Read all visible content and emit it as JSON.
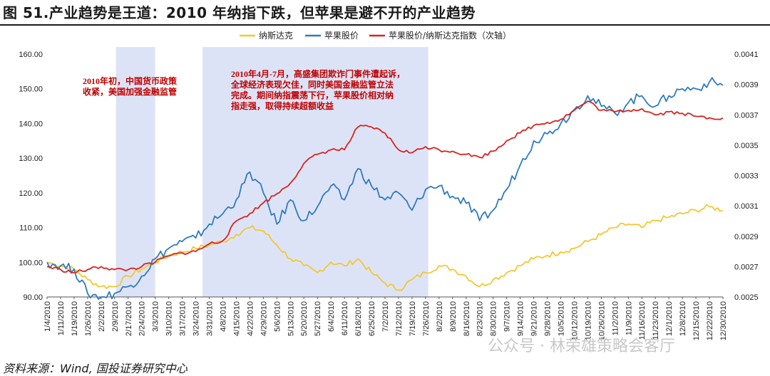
{
  "header": {
    "title": "图 51.产业趋势是王道：2010 年纳指下跌，但苹果是避不开的产业趋势"
  },
  "footer": {
    "source": "资料来源：Wind, 国投证券研究中心",
    "watermark": "公众号 · 林荣雄策略会客厅"
  },
  "colors": {
    "nasdaq": "#f2c832",
    "apple": "#2f7bbf",
    "ratio": "#d9231f",
    "shade": "#dde3f6",
    "annotation": "#c00000"
  },
  "chart_data": {
    "type": "line",
    "legend": [
      "纳斯达克",
      "苹果股价",
      "苹果股价/纳斯达克指数（次轴）"
    ],
    "legend_position": "top-center",
    "x_tick_labels": [
      "1/4/2010",
      "1/11/2010",
      "1/19/2010",
      "1/26/2010",
      "2/2/2010",
      "2/9/2010",
      "2/17/2010",
      "2/24/2010",
      "3/3/2010",
      "3/10/2010",
      "3/17/2010",
      "3/24/2010",
      "3/31/2010",
      "4/8/2010",
      "4/15/2010",
      "4/22/2010",
      "4/29/2010",
      "5/6/2010",
      "5/13/2010",
      "5/20/2010",
      "5/27/2010",
      "6/4/2010",
      "6/11/2010",
      "6/18/2010",
      "6/25/2010",
      "7/2/2010",
      "7/12/2010",
      "7/19/2010",
      "7/26/2010",
      "8/2/2010",
      "8/9/2010",
      "8/16/2010",
      "8/23/2010",
      "8/30/2010",
      "9/7/2010",
      "9/14/2010",
      "9/21/2010",
      "9/28/2010",
      "10/5/2010",
      "10/12/2010",
      "10/19/2010",
      "10/26/2010",
      "11/2/2010",
      "11/9/2010",
      "11/16/2010",
      "11/23/2010",
      "12/1/2010",
      "12/8/2010",
      "12/15/2010",
      "12/22/2010",
      "12/30/2010"
    ],
    "y_left": {
      "min": 90,
      "max": 160,
      "ticks": [
        "90.00",
        "100.00",
        "110.00",
        "120.00",
        "130.00",
        "140.00",
        "150.00",
        "160.00"
      ]
    },
    "y_right": {
      "min": 0.0025,
      "max": 0.0041,
      "ticks": [
        "0.0025",
        "0.0027",
        "0.0029",
        "0.0031",
        "0.0033",
        "0.0035",
        "0.0037",
        "0.0039",
        "0.0041"
      ]
    },
    "grid": false,
    "shaded_periods": [
      {
        "from": 5.1,
        "to": 8.0
      },
      {
        "from": 11.5,
        "to": 28.2
      }
    ],
    "annotations": [
      {
        "lines": [
          "2010年初，中国货币政策",
          "收紧，美国加强金融监管"
        ]
      },
      {
        "lines": [
          "2010年4月-7月，高盛集团欺诈门事件遭起诉，",
          "全球经济表现欠佳，同时美国金融监管立法",
          "完成。期间纳指震荡下行，苹果股价相对纳",
          "指走强，取得持续超额收益"
        ]
      }
    ],
    "series": [
      {
        "name": "纳斯达克",
        "axis": "left",
        "points": [
          [
            0,
            100
          ],
          [
            1,
            99
          ],
          [
            2,
            98
          ],
          [
            3,
            95
          ],
          [
            4,
            93
          ],
          [
            5,
            93
          ],
          [
            6,
            96
          ],
          [
            7,
            98
          ],
          [
            8,
            100
          ],
          [
            9,
            102
          ],
          [
            10,
            103
          ],
          [
            11,
            104
          ],
          [
            12,
            105
          ],
          [
            13,
            106
          ],
          [
            14,
            108
          ],
          [
            15,
            110
          ],
          [
            16,
            109
          ],
          [
            17,
            105
          ],
          [
            18,
            101
          ],
          [
            19,
            99
          ],
          [
            20,
            97
          ],
          [
            21,
            100
          ],
          [
            22,
            99
          ],
          [
            23,
            101
          ],
          [
            24,
            97
          ],
          [
            25,
            94
          ],
          [
            26,
            92
          ],
          [
            27,
            95
          ],
          [
            28,
            97
          ],
          [
            29,
            99
          ],
          [
            30,
            98
          ],
          [
            31,
            96
          ],
          [
            32,
            93
          ],
          [
            33,
            95
          ],
          [
            34,
            97
          ],
          [
            35,
            99
          ],
          [
            36,
            101
          ],
          [
            37,
            102
          ],
          [
            38,
            103
          ],
          [
            39,
            104
          ],
          [
            40,
            106
          ],
          [
            41,
            108
          ],
          [
            42,
            110
          ],
          [
            43,
            111
          ],
          [
            44,
            110
          ],
          [
            45,
            112
          ],
          [
            46,
            113
          ],
          [
            47,
            114
          ],
          [
            48,
            115
          ],
          [
            49,
            116
          ],
          [
            50,
            115
          ]
        ]
      },
      {
        "name": "苹果股价",
        "axis": "left",
        "points": [
          [
            0,
            100
          ],
          [
            1,
            99
          ],
          [
            2,
            98
          ],
          [
            3,
            91
          ],
          [
            4,
            90
          ],
          [
            5,
            91
          ],
          [
            6,
            93
          ],
          [
            7,
            96
          ],
          [
            8,
            101
          ],
          [
            9,
            104
          ],
          [
            10,
            106
          ],
          [
            11,
            107
          ],
          [
            12,
            111
          ],
          [
            13,
            114
          ],
          [
            14,
            118
          ],
          [
            15,
            126
          ],
          [
            16,
            120
          ],
          [
            17,
            111
          ],
          [
            18,
            118
          ],
          [
            19,
            112
          ],
          [
            20,
            116
          ],
          [
            21,
            122
          ],
          [
            22,
            118
          ],
          [
            23,
            127
          ],
          [
            24,
            122
          ],
          [
            25,
            118
          ],
          [
            26,
            120
          ],
          [
            27,
            115
          ],
          [
            28,
            121
          ],
          [
            29,
            122
          ],
          [
            30,
            119
          ],
          [
            31,
            117
          ],
          [
            32,
            112
          ],
          [
            33,
            115
          ],
          [
            34,
            121
          ],
          [
            35,
            128
          ],
          [
            36,
            135
          ],
          [
            37,
            137
          ],
          [
            38,
            140
          ],
          [
            39,
            144
          ],
          [
            40,
            148
          ],
          [
            41,
            145
          ],
          [
            42,
            143
          ],
          [
            43,
            146
          ],
          [
            44,
            148
          ],
          [
            45,
            145
          ],
          [
            46,
            148
          ],
          [
            47,
            150
          ],
          [
            48,
            150
          ],
          [
            49,
            152
          ],
          [
            50,
            151
          ]
        ]
      },
      {
        "name": "苹果股价/纳斯达克指数（次轴）",
        "axis": "right",
        "points": [
          [
            0,
            0.0027
          ],
          [
            1,
            0.00268
          ],
          [
            2,
            0.00266
          ],
          [
            3,
            0.00268
          ],
          [
            4,
            0.0027
          ],
          [
            5,
            0.00268
          ],
          [
            6,
            0.00268
          ],
          [
            7,
            0.0027
          ],
          [
            8,
            0.00273
          ],
          [
            9,
            0.00277
          ],
          [
            10,
            0.00279
          ],
          [
            11,
            0.0028
          ],
          [
            12,
            0.00285
          ],
          [
            13,
            0.00287
          ],
          [
            14,
            0.003
          ],
          [
            15,
            0.00305
          ],
          [
            16,
            0.00312
          ],
          [
            17,
            0.00318
          ],
          [
            18,
            0.00325
          ],
          [
            19,
            0.00338
          ],
          [
            20,
            0.00344
          ],
          [
            21,
            0.00347
          ],
          [
            22,
            0.00347
          ],
          [
            23,
            0.00362
          ],
          [
            24,
            0.00362
          ],
          [
            25,
            0.00358
          ],
          [
            26,
            0.00347
          ],
          [
            27,
            0.00345
          ],
          [
            28,
            0.00349
          ],
          [
            29,
            0.00347
          ],
          [
            30,
            0.00346
          ],
          [
            31,
            0.00344
          ],
          [
            32,
            0.00342
          ],
          [
            33,
            0.00346
          ],
          [
            34,
            0.00353
          ],
          [
            35,
            0.00358
          ],
          [
            36,
            0.00363
          ],
          [
            37,
            0.00365
          ],
          [
            38,
            0.00367
          ],
          [
            39,
            0.00373
          ],
          [
            40,
            0.00379
          ],
          [
            41,
            0.00373
          ],
          [
            42,
            0.00372
          ],
          [
            43,
            0.00373
          ],
          [
            44,
            0.00374
          ],
          [
            45,
            0.0037
          ],
          [
            46,
            0.00372
          ],
          [
            47,
            0.00371
          ],
          [
            48,
            0.00369
          ],
          [
            49,
            0.00368
          ],
          [
            50,
            0.00368
          ]
        ]
      }
    ]
  }
}
